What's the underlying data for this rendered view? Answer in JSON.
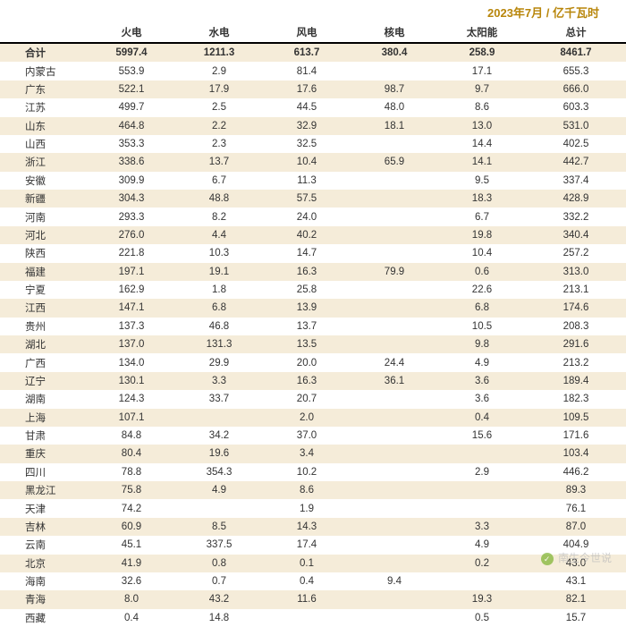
{
  "title": "2023年7月 / 亿千瓦时",
  "columns": [
    "",
    "火电",
    "水电",
    "风电",
    "核电",
    "太阳能",
    "总计"
  ],
  "total_row": [
    "合计",
    "5997.4",
    "1211.3",
    "613.7",
    "380.4",
    "258.9",
    "8461.7"
  ],
  "rows": [
    [
      "内蒙古",
      "553.9",
      "2.9",
      "81.4",
      "",
      "17.1",
      "655.3"
    ],
    [
      "广东",
      "522.1",
      "17.9",
      "17.6",
      "98.7",
      "9.7",
      "666.0"
    ],
    [
      "江苏",
      "499.7",
      "2.5",
      "44.5",
      "48.0",
      "8.6",
      "603.3"
    ],
    [
      "山东",
      "464.8",
      "2.2",
      "32.9",
      "18.1",
      "13.0",
      "531.0"
    ],
    [
      "山西",
      "353.3",
      "2.3",
      "32.5",
      "",
      "14.4",
      "402.5"
    ],
    [
      "浙江",
      "338.6",
      "13.7",
      "10.4",
      "65.9",
      "14.1",
      "442.7"
    ],
    [
      "安徽",
      "309.9",
      "6.7",
      "11.3",
      "",
      "9.5",
      "337.4"
    ],
    [
      "新疆",
      "304.3",
      "48.8",
      "57.5",
      "",
      "18.3",
      "428.9"
    ],
    [
      "河南",
      "293.3",
      "8.2",
      "24.0",
      "",
      "6.7",
      "332.2"
    ],
    [
      "河北",
      "276.0",
      "4.4",
      "40.2",
      "",
      "19.8",
      "340.4"
    ],
    [
      "陕西",
      "221.8",
      "10.3",
      "14.7",
      "",
      "10.4",
      "257.2"
    ],
    [
      "福建",
      "197.1",
      "19.1",
      "16.3",
      "79.9",
      "0.6",
      "313.0"
    ],
    [
      "宁夏",
      "162.9",
      "1.8",
      "25.8",
      "",
      "22.6",
      "213.1"
    ],
    [
      "江西",
      "147.1",
      "6.8",
      "13.9",
      "",
      "6.8",
      "174.6"
    ],
    [
      "贵州",
      "137.3",
      "46.8",
      "13.7",
      "",
      "10.5",
      "208.3"
    ],
    [
      "湖北",
      "137.0",
      "131.3",
      "13.5",
      "",
      "9.8",
      "291.6"
    ],
    [
      "广西",
      "134.0",
      "29.9",
      "20.0",
      "24.4",
      "4.9",
      "213.2"
    ],
    [
      "辽宁",
      "130.1",
      "3.3",
      "16.3",
      "36.1",
      "3.6",
      "189.4"
    ],
    [
      "湖南",
      "124.3",
      "33.7",
      "20.7",
      "",
      "3.6",
      "182.3"
    ],
    [
      "上海",
      "107.1",
      "",
      "2.0",
      "",
      "0.4",
      "109.5"
    ],
    [
      "甘肃",
      "84.8",
      "34.2",
      "37.0",
      "",
      "15.6",
      "171.6"
    ],
    [
      "重庆",
      "80.4",
      "19.6",
      "3.4",
      "",
      "",
      "103.4"
    ],
    [
      "四川",
      "78.8",
      "354.3",
      "10.2",
      "",
      "2.9",
      "446.2"
    ],
    [
      "黑龙江",
      "75.8",
      "4.9",
      "8.6",
      "",
      "",
      "89.3"
    ],
    [
      "天津",
      "74.2",
      "",
      "1.9",
      "",
      "",
      "76.1"
    ],
    [
      "吉林",
      "60.9",
      "8.5",
      "14.3",
      "",
      "3.3",
      "87.0"
    ],
    [
      "云南",
      "45.1",
      "337.5",
      "17.4",
      "",
      "4.9",
      "404.9"
    ],
    [
      "北京",
      "41.9",
      "0.8",
      "0.1",
      "",
      "0.2",
      "43.0"
    ],
    [
      "海南",
      "32.6",
      "0.7",
      "0.4",
      "9.4",
      "",
      "43.1"
    ],
    [
      "青海",
      "8.0",
      "43.2",
      "11.6",
      "",
      "19.3",
      "82.1"
    ],
    [
      "西藏",
      "0.4",
      "14.8",
      "",
      "",
      "0.5",
      "15.7"
    ]
  ],
  "watermark": "南生今世说",
  "colors": {
    "title": "#b8860b",
    "row_odd_bg": "#f5ecd9",
    "row_even_bg": "#ffffff",
    "header_border": "#000000",
    "text": "#333333"
  },
  "col_widths_pct": [
    14,
    14,
    14,
    14,
    14,
    14,
    16
  ]
}
